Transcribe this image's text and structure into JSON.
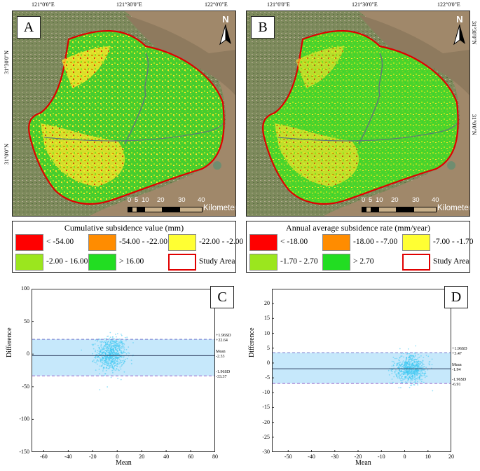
{
  "maps": [
    {
      "letter": "A",
      "top_coords": [
        "121°0'0\"E",
        "121°30'0\"E",
        "122°0'0\"E"
      ],
      "left_coords": [
        "31°30'0\"N",
        "31°0'0\"N"
      ],
      "north": "N",
      "scale_ticks": [
        "0",
        "5",
        "10",
        "20",
        "30",
        "40"
      ],
      "scale_unit": "Kilometers",
      "legend_title": "Cumulative subsidence value (mm)",
      "legend_items": [
        {
          "label": "< -54.00",
          "color": "#ff0000"
        },
        {
          "label": "-54.00 - -22.00",
          "color": "#ff8c00"
        },
        {
          "label": "-22.00 - -2.00",
          "color": "#ffff33"
        },
        {
          "label": "-2.00 - 16.00",
          "color": "#9be61e"
        },
        {
          "label": "> 16.00",
          "color": "#22dd22"
        },
        {
          "label": "Study Area",
          "color": "#e00000"
        }
      ]
    },
    {
      "letter": "B",
      "top_coords": [
        "121°0'0\"E",
        "121°30'0\"E",
        "122°0'0\"E"
      ],
      "right_coords": [
        "31°30'0\"N",
        "31°0'0\"N"
      ],
      "north": "N",
      "scale_ticks": [
        "0",
        "5",
        "10",
        "20",
        "30",
        "40"
      ],
      "scale_unit": "Kilometers",
      "legend_title": "Annual average subsidence rate (mm/year)",
      "legend_items": [
        {
          "label": "< -18.00",
          "color": "#ff0000"
        },
        {
          "label": "-18.00 - -7.00",
          "color": "#ff8c00"
        },
        {
          "label": "-7.00 - -1.70",
          "color": "#ffff33"
        },
        {
          "label": "-1.70 - 2.70",
          "color": "#9be61e"
        },
        {
          "label": "> 2.70",
          "color": "#22dd22"
        },
        {
          "label": "Study Area",
          "color": "#e00000"
        }
      ]
    }
  ],
  "chart_data": [
    {
      "type": "scatter",
      "panel": "C",
      "title": "",
      "xlabel": "Mean",
      "ylabel": "Difference",
      "xlim": [
        -70,
        80
      ],
      "ylim": [
        -150,
        100
      ],
      "x_ticks": [
        "-60",
        "-40",
        "-20",
        "0",
        "20",
        "40",
        "60",
        "80"
      ],
      "y_ticks": [
        "100",
        "50",
        "0",
        "-50",
        "-100",
        "-150"
      ],
      "mean": -2.33,
      "upper": 22.64,
      "lower": -33.37,
      "labels": {
        "upper_name": "+1.96SD",
        "upper_val": "+22.64",
        "mean_name": "Mean",
        "mean_val": "-2.33",
        "lower_name": "-1.96SD",
        "lower_val": "-33.37"
      },
      "cluster": {
        "cx": -5,
        "cy": 0,
        "sx": 6,
        "sy": 13
      }
    },
    {
      "type": "scatter",
      "panel": "D",
      "title": "",
      "xlabel": "Mean",
      "ylabel": "Difference",
      "xlim": [
        -57,
        20
      ],
      "ylim": [
        -30,
        25
      ],
      "x_ticks": [
        "-50",
        "-40",
        "-30",
        "-20",
        "-10",
        "0",
        "10",
        "20"
      ],
      "y_ticks": [
        "20",
        "15",
        "10",
        "5",
        "0",
        "-5",
        "-10",
        "-15",
        "-20",
        "-25",
        "-30"
      ],
      "mean": -1.94,
      "upper": 3.47,
      "lower": -6.91,
      "labels": {
        "upper_name": "+1.96SD",
        "upper_val": "+3.47",
        "mean_name": "Mean",
        "mean_val": "-1.94",
        "lower_name": "-1.96SD",
        "lower_val": "-6.91"
      },
      "cluster": {
        "cx": 2.5,
        "cy": -2,
        "sx": 3.5,
        "sy": 2.2
      }
    }
  ]
}
